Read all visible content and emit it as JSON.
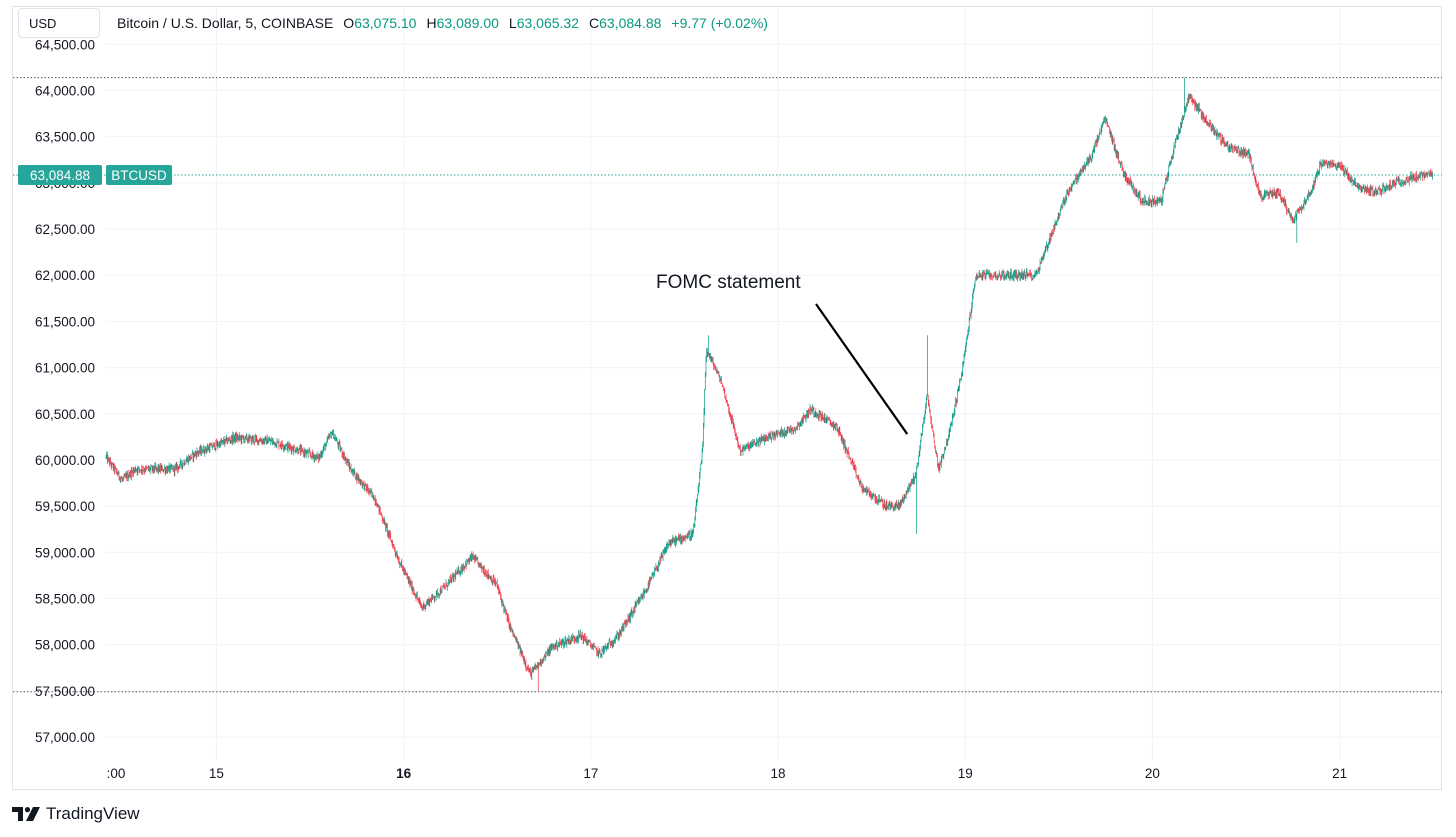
{
  "header": {
    "currency_button": "USD",
    "symbol": "Bitcoin / U.S. Dollar, 5, COINBASE",
    "open_key": "O",
    "open": "63,075.10",
    "high_key": "H",
    "high": "63,089.00",
    "low_key": "L",
    "low": "63,065.32",
    "close_key": "C",
    "close": "63,084.88",
    "change": "+9.77 (+0.02%)"
  },
  "price_badge": {
    "value": "63,084.88",
    "ticker": "BTCUSD",
    "color": "#26a69a"
  },
  "footer": {
    "brand": "TradingView"
  },
  "colors": {
    "up": "#089981",
    "down": "#f23645",
    "grid": "#f0f3fa",
    "dotted": "#131722"
  },
  "chart_data": {
    "type": "line",
    "style": "candlestick",
    "interval": "5 minutes",
    "ylim": [
      56800,
      64550
    ],
    "y_ticks": [
      "57,000.00",
      "57,500.00",
      "58,000.00",
      "58,500.00",
      "59,000.00",
      "59,500.00",
      "60,000.00",
      "60,500.00",
      "61,000.00",
      "61,500.00",
      "62,000.00",
      "62,500.00",
      "63,000.00",
      "63,500.00",
      "64,000.00",
      "64,500.00"
    ],
    "x_ticks": [
      {
        "label": ":00",
        "day": 14.5,
        "bold": false
      },
      {
        "label": "15",
        "day": 15,
        "bold": false
      },
      {
        "label": "16",
        "day": 16,
        "bold": true
      },
      {
        "label": "17",
        "day": 17,
        "bold": false
      },
      {
        "label": "18",
        "day": 18,
        "bold": false
      },
      {
        "label": "19",
        "day": 19,
        "bold": false
      },
      {
        "label": "20",
        "day": 20,
        "bold": false
      },
      {
        "label": "21",
        "day": 21,
        "bold": false
      }
    ],
    "xlim": [
      14.41,
      21.5
    ],
    "reference_lines": [
      64140,
      57490
    ],
    "last_price": 63084.88,
    "annotation": {
      "text": "FOMC statement",
      "day": 18.69,
      "price": 60280
    },
    "price_path": [
      [
        14.41,
        60040
      ],
      [
        14.5,
        59780
      ],
      [
        14.57,
        59900
      ],
      [
        14.78,
        59900
      ],
      [
        14.9,
        60080
      ],
      [
        15.1,
        60240
      ],
      [
        15.3,
        60200
      ],
      [
        15.45,
        60100
      ],
      [
        15.55,
        60020
      ],
      [
        15.62,
        60300
      ],
      [
        15.72,
        59900
      ],
      [
        15.85,
        59580
      ],
      [
        15.98,
        58900
      ],
      [
        16.1,
        58400
      ],
      [
        16.22,
        58620
      ],
      [
        16.37,
        58950
      ],
      [
        16.5,
        58650
      ],
      [
        16.57,
        58200
      ],
      [
        16.68,
        57680
      ],
      [
        16.8,
        57980
      ],
      [
        16.95,
        58100
      ],
      [
        17.05,
        57900
      ],
      [
        17.15,
        58100
      ],
      [
        17.3,
        58600
      ],
      [
        17.42,
        59100
      ],
      [
        17.55,
        59200
      ],
      [
        17.6,
        60100
      ],
      [
        17.62,
        61200
      ],
      [
        17.7,
        60850
      ],
      [
        17.8,
        60100
      ],
      [
        17.95,
        60250
      ],
      [
        18.1,
        60350
      ],
      [
        18.18,
        60550
      ],
      [
        18.32,
        60350
      ],
      [
        18.45,
        59700
      ],
      [
        18.58,
        59500
      ],
      [
        18.65,
        59500
      ],
      [
        18.74,
        59850
      ],
      [
        18.8,
        60700
      ],
      [
        18.86,
        59900
      ],
      [
        18.92,
        60300
      ],
      [
        18.99,
        61000
      ],
      [
        19.06,
        62000
      ],
      [
        19.2,
        62000
      ],
      [
        19.3,
        62000
      ],
      [
        19.38,
        62000
      ],
      [
        19.55,
        62900
      ],
      [
        19.68,
        63300
      ],
      [
        19.75,
        63700
      ],
      [
        19.85,
        63100
      ],
      [
        19.95,
        62800
      ],
      [
        20.05,
        62800
      ],
      [
        20.12,
        63400
      ],
      [
        20.2,
        63950
      ],
      [
        20.28,
        63700
      ],
      [
        20.4,
        63400
      ],
      [
        20.52,
        63300
      ],
      [
        20.58,
        62850
      ],
      [
        20.68,
        62900
      ],
      [
        20.75,
        62600
      ],
      [
        20.85,
        62900
      ],
      [
        20.9,
        63200
      ],
      [
        21.0,
        63200
      ],
      [
        21.1,
        62950
      ],
      [
        21.2,
        62900
      ],
      [
        21.3,
        63000
      ],
      [
        21.38,
        63050
      ],
      [
        21.45,
        63080
      ],
      [
        21.5,
        63085
      ]
    ],
    "notable_extremes": [
      {
        "day": 16.72,
        "low": 57500
      },
      {
        "day": 17.63,
        "high": 61350
      },
      {
        "day": 18.74,
        "low": 59200
      },
      {
        "day": 18.8,
        "high": 61350
      },
      {
        "day": 20.17,
        "high": 64140
      },
      {
        "day": 20.77,
        "low": 62350
      }
    ]
  }
}
